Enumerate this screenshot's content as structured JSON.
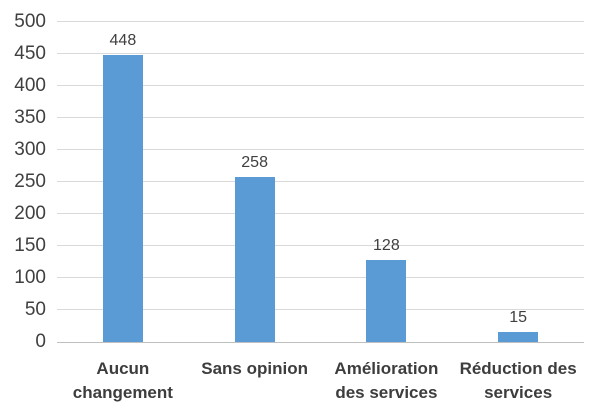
{
  "chart_data": {
    "type": "bar",
    "title": "",
    "xlabel": "",
    "ylabel": "",
    "categories": [
      "Aucun\nchangement",
      "Sans opinion",
      "Amélioration\ndes services",
      "Réduction des\nservices"
    ],
    "values": [
      448,
      258,
      128,
      15
    ],
    "data_labels": [
      "448",
      "258",
      "128",
      "15"
    ],
    "ylim": [
      0,
      500
    ],
    "yticks": [
      0,
      50,
      100,
      150,
      200,
      250,
      300,
      350,
      400,
      450,
      500
    ],
    "grid": true,
    "legend_position": "none",
    "bar_color": "#5B9BD5",
    "gridline_color": "#D9D9D9",
    "axis_line_color": "#BFBFBF",
    "tick_label_color": "#404040",
    "data_label_color": "#404040",
    "category_label_color": "#3d3d3d",
    "background_color": "#FFFFFF"
  }
}
